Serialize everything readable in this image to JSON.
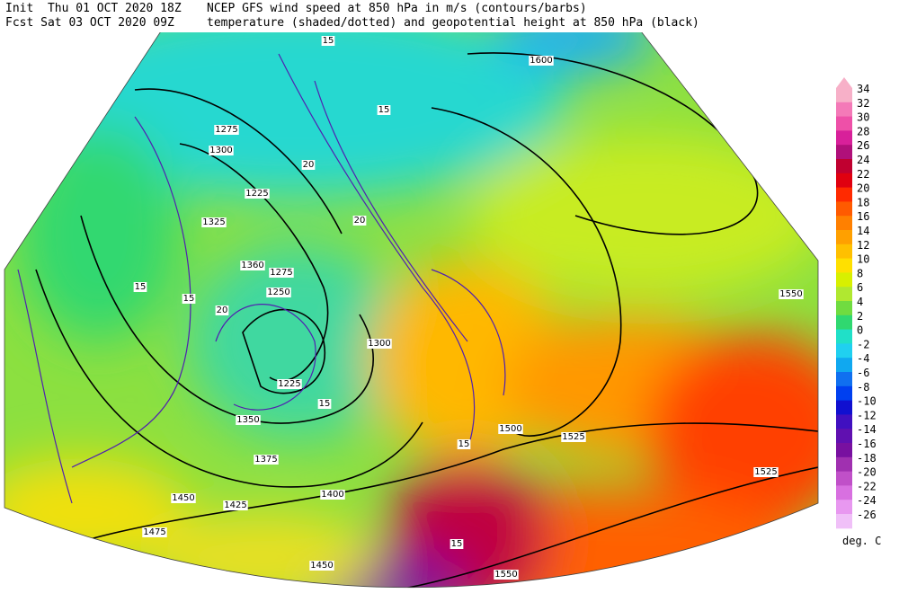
{
  "header": {
    "init": "Init  Thu 01 OCT 2020 18Z",
    "fcst": "Fcst Sat 03 OCT 2020 09Z",
    "line1": "NCEP GFS wind speed at 850 hPa in m/s (contours/barbs)",
    "line2": "temperature (shaded/dotted) and geopotential height at 850 hPa (black)"
  },
  "colorbar": {
    "labels": [
      "34",
      "32",
      "30",
      "28",
      "26",
      "24",
      "22",
      "20",
      "18",
      "16",
      "14",
      "12",
      "10",
      "8",
      "6",
      "4",
      "2",
      "0",
      "-2",
      "-4",
      "-6",
      "-8",
      "-10",
      "-12",
      "-14",
      "-16",
      "-18",
      "-20",
      "-22",
      "-24",
      "-26"
    ],
    "colors": [
      "#f7b0c8",
      "#f47ab8",
      "#ee50a8",
      "#d8209a",
      "#b0107a",
      "#c00030",
      "#e00010",
      "#ff2a00",
      "#ff5a00",
      "#ff8000",
      "#ffa000",
      "#ffc000",
      "#ffe000",
      "#d8f000",
      "#b0e830",
      "#70dc40",
      "#30d870",
      "#20e0c8",
      "#20d0f0",
      "#10a8f0",
      "#1070f0",
      "#0040f0",
      "#1010d0",
      "#4010c0",
      "#6010b0",
      "#7810a0",
      "#a030b0",
      "#c050c8",
      "#d870e0",
      "#e898f0",
      "#f0c0f8"
    ],
    "unit": "deg. C"
  },
  "map_labels": [
    "1600",
    "1275",
    "1300",
    "1325",
    "1225",
    "1360",
    "1275",
    "1250",
    "1300",
    "1225",
    "1350",
    "1375",
    "1400",
    "1425",
    "1450",
    "1475",
    "1450",
    "1550",
    "1525",
    "1500",
    "1525",
    "1550",
    "15",
    "20",
    "15",
    "20",
    "15",
    "15",
    "20",
    "15",
    "15",
    "15"
  ]
}
